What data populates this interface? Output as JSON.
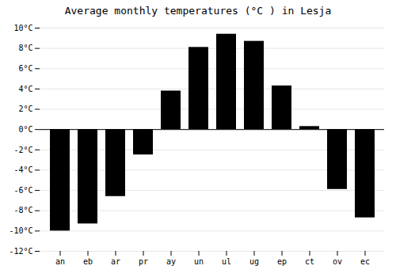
{
  "chart_data": {
    "type": "bar",
    "title": "Average monthly temperatures (°C ) in Lesja",
    "categories": [
      "an",
      "eb",
      "ar",
      "pr",
      "ay",
      "un",
      "ul",
      "ug",
      "ep",
      "ct",
      "ov",
      "ec"
    ],
    "values": [
      -10.0,
      -9.3,
      -6.6,
      -2.5,
      3.8,
      8.1,
      9.4,
      8.7,
      4.3,
      0.3,
      -5.9,
      -8.7
    ],
    "ylim": [
      -12,
      10
    ],
    "yticks": [
      {
        "value": -12,
        "label": "-12°C"
      },
      {
        "value": -10,
        "label": "-10°C"
      },
      {
        "value": -8,
        "label": "-8°C"
      },
      {
        "value": -6,
        "label": "-6°C"
      },
      {
        "value": -4,
        "label": "-4°C"
      },
      {
        "value": -2,
        "label": "-2°C"
      },
      {
        "value": 0,
        "label": "0°C"
      },
      {
        "value": 2,
        "label": "2°C"
      },
      {
        "value": 4,
        "label": "4°C"
      },
      {
        "value": 6,
        "label": "6°C"
      },
      {
        "value": 8,
        "label": "8°C"
      },
      {
        "value": 10,
        "label": "10°C"
      }
    ],
    "grid": true
  }
}
